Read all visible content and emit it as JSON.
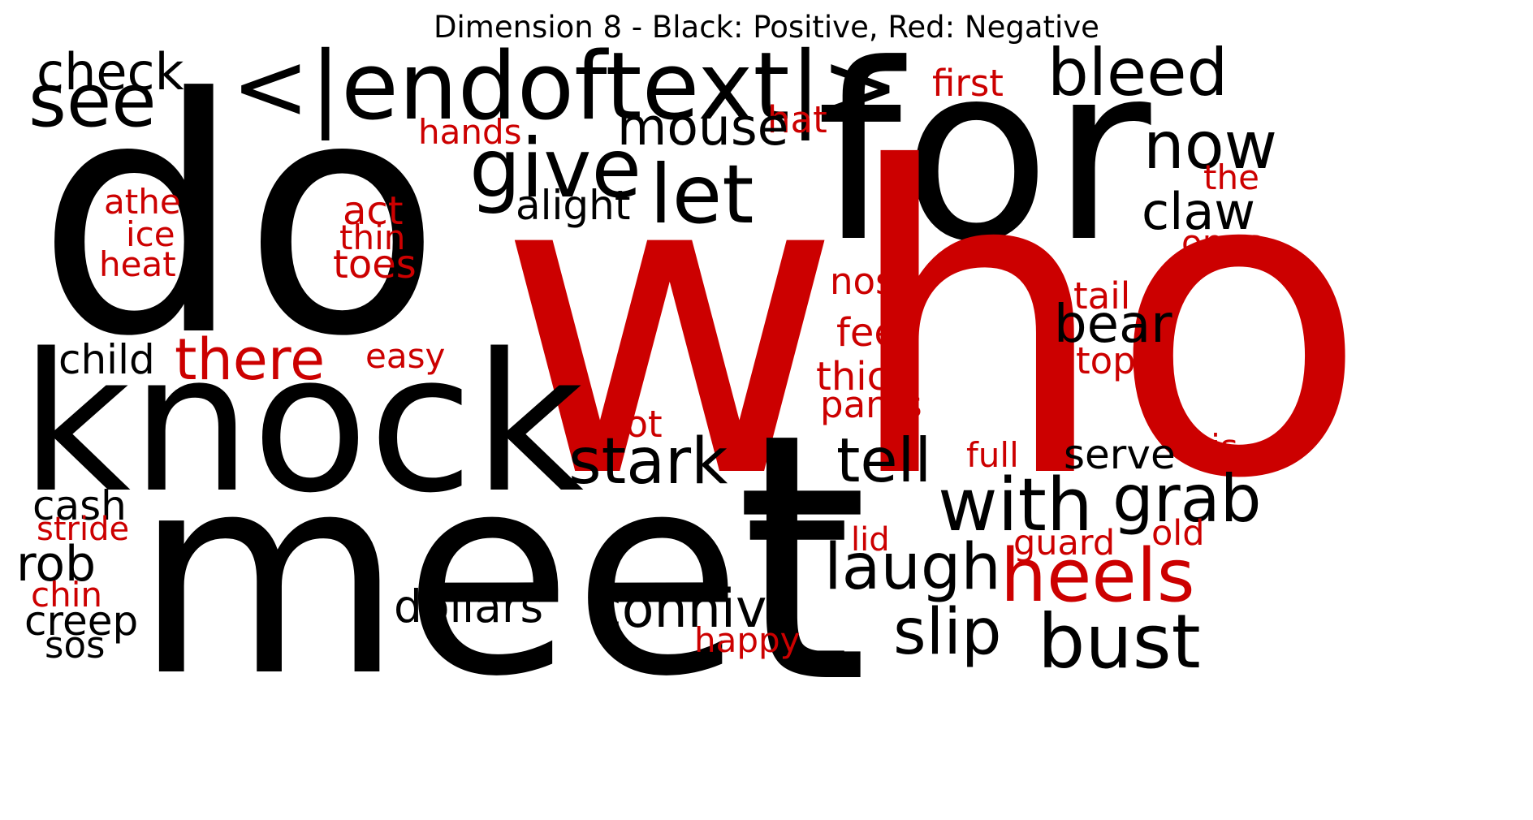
{
  "title": "Dimension 8 - Black: Positive, Red: Negative",
  "colors": {
    "positive": "#000000",
    "negative": "#cc0000"
  },
  "words": [
    {
      "id": "do",
      "text": "do",
      "polarity": "positive"
    },
    {
      "id": "for",
      "text": "for",
      "polarity": "positive"
    },
    {
      "id": "who",
      "text": "who",
      "polarity": "negative"
    },
    {
      "id": "meet",
      "text": "meet",
      "polarity": "positive"
    },
    {
      "id": "t",
      "text": "t",
      "polarity": "positive"
    },
    {
      "id": "knock",
      "text": "knock",
      "polarity": "positive"
    },
    {
      "id": "endoftext",
      "text": "<|endoftext|>",
      "polarity": "positive"
    },
    {
      "id": "check",
      "text": "check",
      "polarity": "positive"
    },
    {
      "id": "see",
      "text": "see",
      "polarity": "positive"
    },
    {
      "id": "bleed",
      "text": "bleed",
      "polarity": "positive"
    },
    {
      "id": "first",
      "text": "first",
      "polarity": "negative"
    },
    {
      "id": "hat",
      "text": "hat",
      "polarity": "negative"
    },
    {
      "id": "mouse",
      "text": "mouse",
      "polarity": "positive"
    },
    {
      "id": "hands",
      "text": "hands",
      "polarity": "negative"
    },
    {
      "id": "give",
      "text": "give",
      "polarity": "positive"
    },
    {
      "id": "let",
      "text": "let",
      "polarity": "positive"
    },
    {
      "id": "alight",
      "text": "alight",
      "polarity": "positive"
    },
    {
      "id": "now",
      "text": "now",
      "polarity": "positive"
    },
    {
      "id": "the",
      "text": "the",
      "polarity": "negative"
    },
    {
      "id": "claw",
      "text": "claw",
      "polarity": "positive"
    },
    {
      "id": "ones",
      "text": "ones",
      "polarity": "negative"
    },
    {
      "id": "athe",
      "text": "athe",
      "polarity": "negative"
    },
    {
      "id": "ice",
      "text": "ice",
      "polarity": "negative"
    },
    {
      "id": "heat",
      "text": "heat",
      "polarity": "negative"
    },
    {
      "id": "act",
      "text": "act",
      "polarity": "negative"
    },
    {
      "id": "thin",
      "text": "thin",
      "polarity": "negative"
    },
    {
      "id": "toes",
      "text": "toes",
      "polarity": "negative"
    },
    {
      "id": "nose",
      "text": "nose",
      "polarity": "negative"
    },
    {
      "id": "tail",
      "text": "tail",
      "polarity": "negative"
    },
    {
      "id": "bear",
      "text": "bear",
      "polarity": "positive"
    },
    {
      "id": "top",
      "text": "top",
      "polarity": "negative"
    },
    {
      "id": "feet",
      "text": "feet",
      "polarity": "negative"
    },
    {
      "id": "thick",
      "text": "thick",
      "polarity": "negative"
    },
    {
      "id": "pants",
      "text": "pants",
      "polarity": "negative"
    },
    {
      "id": "child",
      "text": "child",
      "polarity": "positive"
    },
    {
      "id": "there",
      "text": "there",
      "polarity": "negative"
    },
    {
      "id": "easy",
      "text": "easy",
      "polarity": "negative"
    },
    {
      "id": "hot",
      "text": "hot",
      "polarity": "negative"
    },
    {
      "id": "stark",
      "text": "stark",
      "polarity": "positive"
    },
    {
      "id": "tell",
      "text": "tell",
      "polarity": "positive"
    },
    {
      "id": "full",
      "text": "full",
      "polarity": "negative"
    },
    {
      "id": "serve",
      "text": "serve",
      "polarity": "positive"
    },
    {
      "id": "this",
      "text": "this",
      "polarity": "negative"
    },
    {
      "id": "with",
      "text": "with",
      "polarity": "positive"
    },
    {
      "id": "grab",
      "text": "grab",
      "polarity": "positive"
    },
    {
      "id": "cash",
      "text": "cash",
      "polarity": "positive"
    },
    {
      "id": "stride",
      "text": "stride",
      "polarity": "negative"
    },
    {
      "id": "rob",
      "text": "rob",
      "polarity": "positive"
    },
    {
      "id": "lid",
      "text": "lid",
      "polarity": "negative"
    },
    {
      "id": "guard",
      "text": "guard",
      "polarity": "negative"
    },
    {
      "id": "old",
      "text": "old",
      "polarity": "negative"
    },
    {
      "id": "laugh",
      "text": "laugh",
      "polarity": "positive"
    },
    {
      "id": "heels",
      "text": "heels",
      "polarity": "negative"
    },
    {
      "id": "chin",
      "text": "chin",
      "polarity": "negative"
    },
    {
      "id": "creep",
      "text": "creep",
      "polarity": "positive"
    },
    {
      "id": "sos",
      "text": "sos",
      "polarity": "positive"
    },
    {
      "id": "dollars",
      "text": "dollars",
      "polarity": "positive"
    },
    {
      "id": "connive",
      "text": "connive",
      "polarity": "positive"
    },
    {
      "id": "happy",
      "text": "happy",
      "polarity": "negative"
    },
    {
      "id": "slip",
      "text": "slip",
      "polarity": "positive"
    },
    {
      "id": "bust",
      "text": "bust",
      "polarity": "positive"
    }
  ]
}
